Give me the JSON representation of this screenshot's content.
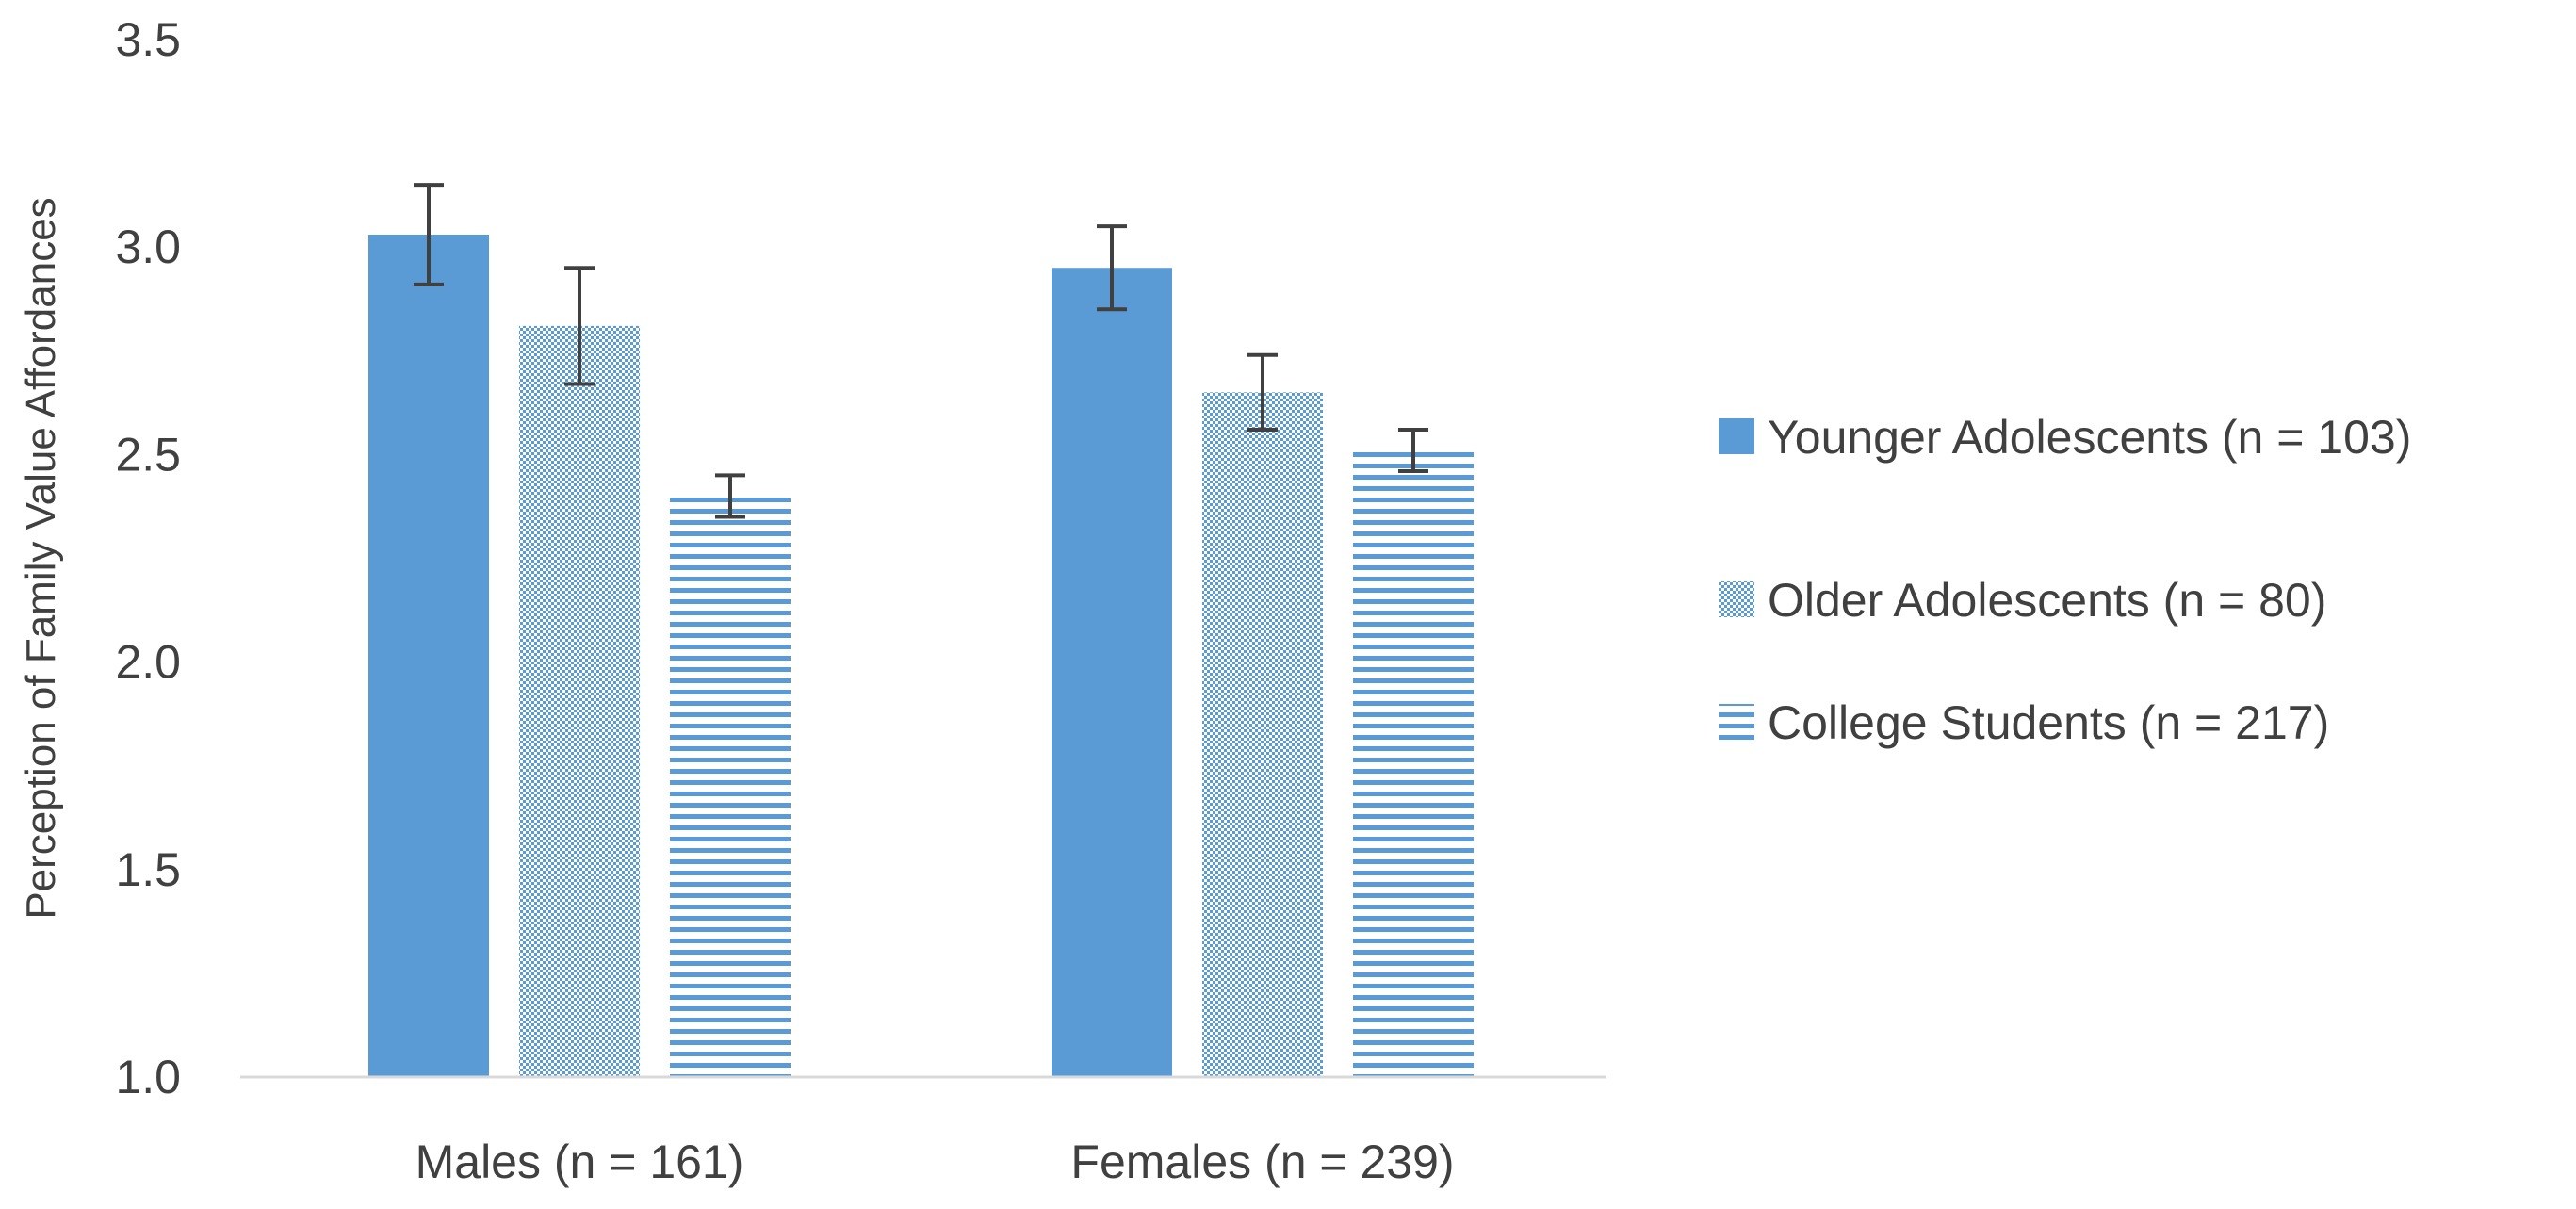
{
  "chart_data": {
    "type": "bar",
    "title": "",
    "xlabel": "",
    "ylabel": "Perception of Family  Value Affordances",
    "ylim": [
      1.0,
      3.5
    ],
    "yticks": [
      "1.0",
      "1.5",
      "2.0",
      "2.5",
      "3.0",
      "3.5"
    ],
    "ytick_values": [
      1.0,
      1.5,
      2.0,
      2.5,
      3.0,
      3.5
    ],
    "categories": [
      "Males (n = 161)",
      "Females (n = 239)"
    ],
    "grid": false,
    "legend_position": "right",
    "series": [
      {
        "name": "Younger Adolescents (n = 103)",
        "values": [
          3.03,
          2.95
        ],
        "error_low": [
          2.91,
          2.85
        ],
        "error_high": [
          3.15,
          3.05
        ],
        "color": "#5b9bd5",
        "pattern": "solid"
      },
      {
        "name": "Older Adolescents (n = 80)",
        "values": [
          2.81,
          2.65
        ],
        "error_low": [
          2.67,
          2.56
        ],
        "error_high": [
          2.95,
          2.74
        ],
        "color": "#5b9bd5",
        "pattern": "dotted"
      },
      {
        "name": "College Students (n = 217)",
        "values": [
          2.4,
          2.51
        ],
        "error_low": [
          2.35,
          2.46
        ],
        "error_high": [
          2.45,
          2.56
        ],
        "color": "#5b9bd5",
        "pattern": "horizontal-stripes"
      }
    ]
  }
}
